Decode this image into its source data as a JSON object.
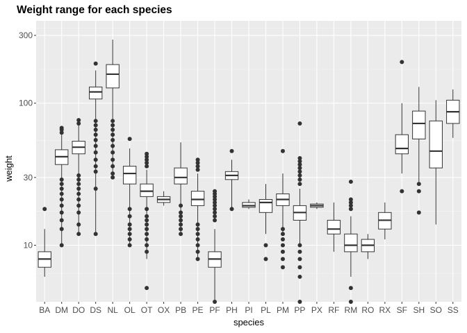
{
  "chart_data": {
    "type": "boxplot",
    "title": "Weight range for each species",
    "xlabel": "species",
    "ylabel": "weight",
    "y_scale": "log10",
    "ylim": [
      4,
      380
    ],
    "y_ticks": [
      10,
      30,
      100,
      300
    ],
    "y_tick_labels": [
      "10",
      "30",
      "100",
      "300"
    ],
    "grid": true,
    "legend": "none",
    "colors": {
      "panel_background": "#EBEBEB",
      "grid_major": "#FFFFFF",
      "box_fill": "#FFFFFF",
      "box_line": "#333333",
      "outlier": "#333333"
    },
    "categories": [
      "BA",
      "DM",
      "DO",
      "DS",
      "NL",
      "OL",
      "OT",
      "OX",
      "PB",
      "PE",
      "PF",
      "PH",
      "PI",
      "PL",
      "PM",
      "PP",
      "PX",
      "RF",
      "RM",
      "RO",
      "RX",
      "SF",
      "SH",
      "SO",
      "SS"
    ],
    "boxes": [
      {
        "species": "BA",
        "min": 6,
        "q1": 7,
        "median": 8,
        "q3": 9,
        "max": 13,
        "outliers": [
          18
        ]
      },
      {
        "species": "DM",
        "min": 10,
        "q1": 37,
        "median": 42,
        "q3": 47,
        "max": 60,
        "outliers": [
          29,
          27,
          25,
          23,
          21,
          19,
          17,
          15,
          13,
          10,
          62,
          65,
          67
        ]
      },
      {
        "species": "DO",
        "min": 12,
        "q1": 44,
        "median": 49,
        "q3": 54,
        "max": 70,
        "outliers": [
          31,
          29,
          27,
          25,
          23,
          21,
          19,
          17,
          14,
          12,
          72,
          76
        ]
      },
      {
        "species": "DS",
        "min": 12,
        "q1": 107,
        "median": 120,
        "q3": 130,
        "max": 170,
        "outliers": [
          75,
          70,
          65,
          60,
          55,
          50,
          45,
          40,
          36,
          33,
          25,
          12,
          190
        ]
      },
      {
        "species": "NL",
        "min": 30,
        "q1": 128,
        "median": 160,
        "q3": 187,
        "max": 280,
        "outliers": [
          75,
          70,
          65,
          60,
          55,
          50,
          45,
          40,
          36,
          32,
          30
        ]
      },
      {
        "species": "OL",
        "min": 10,
        "q1": 27,
        "median": 32,
        "q3": 36,
        "max": 48,
        "outliers": [
          18,
          16,
          14,
          13,
          12,
          11,
          10,
          56
        ]
      },
      {
        "species": "OT",
        "min": 8,
        "q1": 22,
        "median": 24,
        "q3": 27,
        "max": 34,
        "outliers": [
          18,
          16,
          15,
          14,
          13,
          12,
          11,
          10,
          9,
          5,
          36,
          38,
          40,
          42,
          44
        ]
      },
      {
        "species": "OX",
        "min": 19,
        "q1": 20,
        "median": 21,
        "q3": 22,
        "max": 24,
        "outliers": []
      },
      {
        "species": "PB",
        "min": 12,
        "q1": 27,
        "median": 30,
        "q3": 35,
        "max": 53,
        "outliers": [
          19,
          17,
          16,
          15,
          14,
          13,
          12
        ]
      },
      {
        "species": "PE",
        "min": 8,
        "q1": 19,
        "median": 21,
        "q3": 24,
        "max": 32,
        "outliers": [
          14,
          13,
          12,
          11,
          10,
          9,
          8,
          34,
          36,
          38,
          40
        ]
      },
      {
        "species": "PF",
        "min": 4,
        "q1": 7,
        "median": 8,
        "q3": 9,
        "max": 13,
        "outliers": [
          4,
          15,
          16,
          17,
          18,
          19,
          20,
          21,
          22,
          23,
          24
        ]
      },
      {
        "species": "PH",
        "min": 18,
        "q1": 29,
        "median": 31,
        "q3": 33,
        "max": 40,
        "outliers": [
          18,
          46
        ]
      },
      {
        "species": "PI",
        "min": 18,
        "q1": 18.5,
        "median": 19,
        "q3": 20,
        "max": 21,
        "outliers": []
      },
      {
        "species": "PL",
        "min": 12,
        "q1": 17,
        "median": 20,
        "q3": 21,
        "max": 27,
        "outliers": [
          8,
          10
        ]
      },
      {
        "species": "PM",
        "min": 12,
        "q1": 19,
        "median": 21,
        "q3": 23,
        "max": 32,
        "outliers": [
          7,
          8,
          9,
          10,
          11,
          12,
          13,
          46
        ]
      },
      {
        "species": "PP",
        "min": 10,
        "q1": 15,
        "median": 17,
        "q3": 19,
        "max": 25,
        "outliers": [
          4,
          6,
          7,
          8,
          9,
          10,
          27,
          29,
          31,
          33,
          35,
          37,
          39,
          41,
          72
        ]
      },
      {
        "species": "PX",
        "min": 18,
        "q1": 18.5,
        "median": 19,
        "q3": 19.5,
        "max": 20,
        "outliers": []
      },
      {
        "species": "RF",
        "min": 9,
        "q1": 12,
        "median": 13,
        "q3": 15,
        "max": 20,
        "outliers": []
      },
      {
        "species": "RM",
        "min": 6,
        "q1": 9,
        "median": 10,
        "q3": 12,
        "max": 16,
        "outliers": [
          4,
          5,
          18,
          19,
          20,
          21,
          28
        ]
      },
      {
        "species": "RO",
        "min": 8,
        "q1": 9,
        "median": 10,
        "q3": 11,
        "max": 12,
        "outliers": []
      },
      {
        "species": "RX",
        "min": 11,
        "q1": 13,
        "median": 15,
        "q3": 17,
        "max": 20,
        "outliers": []
      },
      {
        "species": "SF",
        "min": 32,
        "q1": 44,
        "median": 48,
        "q3": 60,
        "max": 100,
        "outliers": [
          24,
          195
        ]
      },
      {
        "species": "SH",
        "min": 28,
        "q1": 56,
        "median": 72,
        "q3": 88,
        "max": 130,
        "outliers": [
          17,
          24,
          27
        ]
      },
      {
        "species": "SO",
        "min": 14,
        "q1": 35,
        "median": 46,
        "q3": 75,
        "max": 105,
        "outliers": []
      },
      {
        "species": "SS",
        "min": 57,
        "q1": 72,
        "median": 87,
        "q3": 105,
        "max": 125,
        "outliers": []
      }
    ]
  }
}
